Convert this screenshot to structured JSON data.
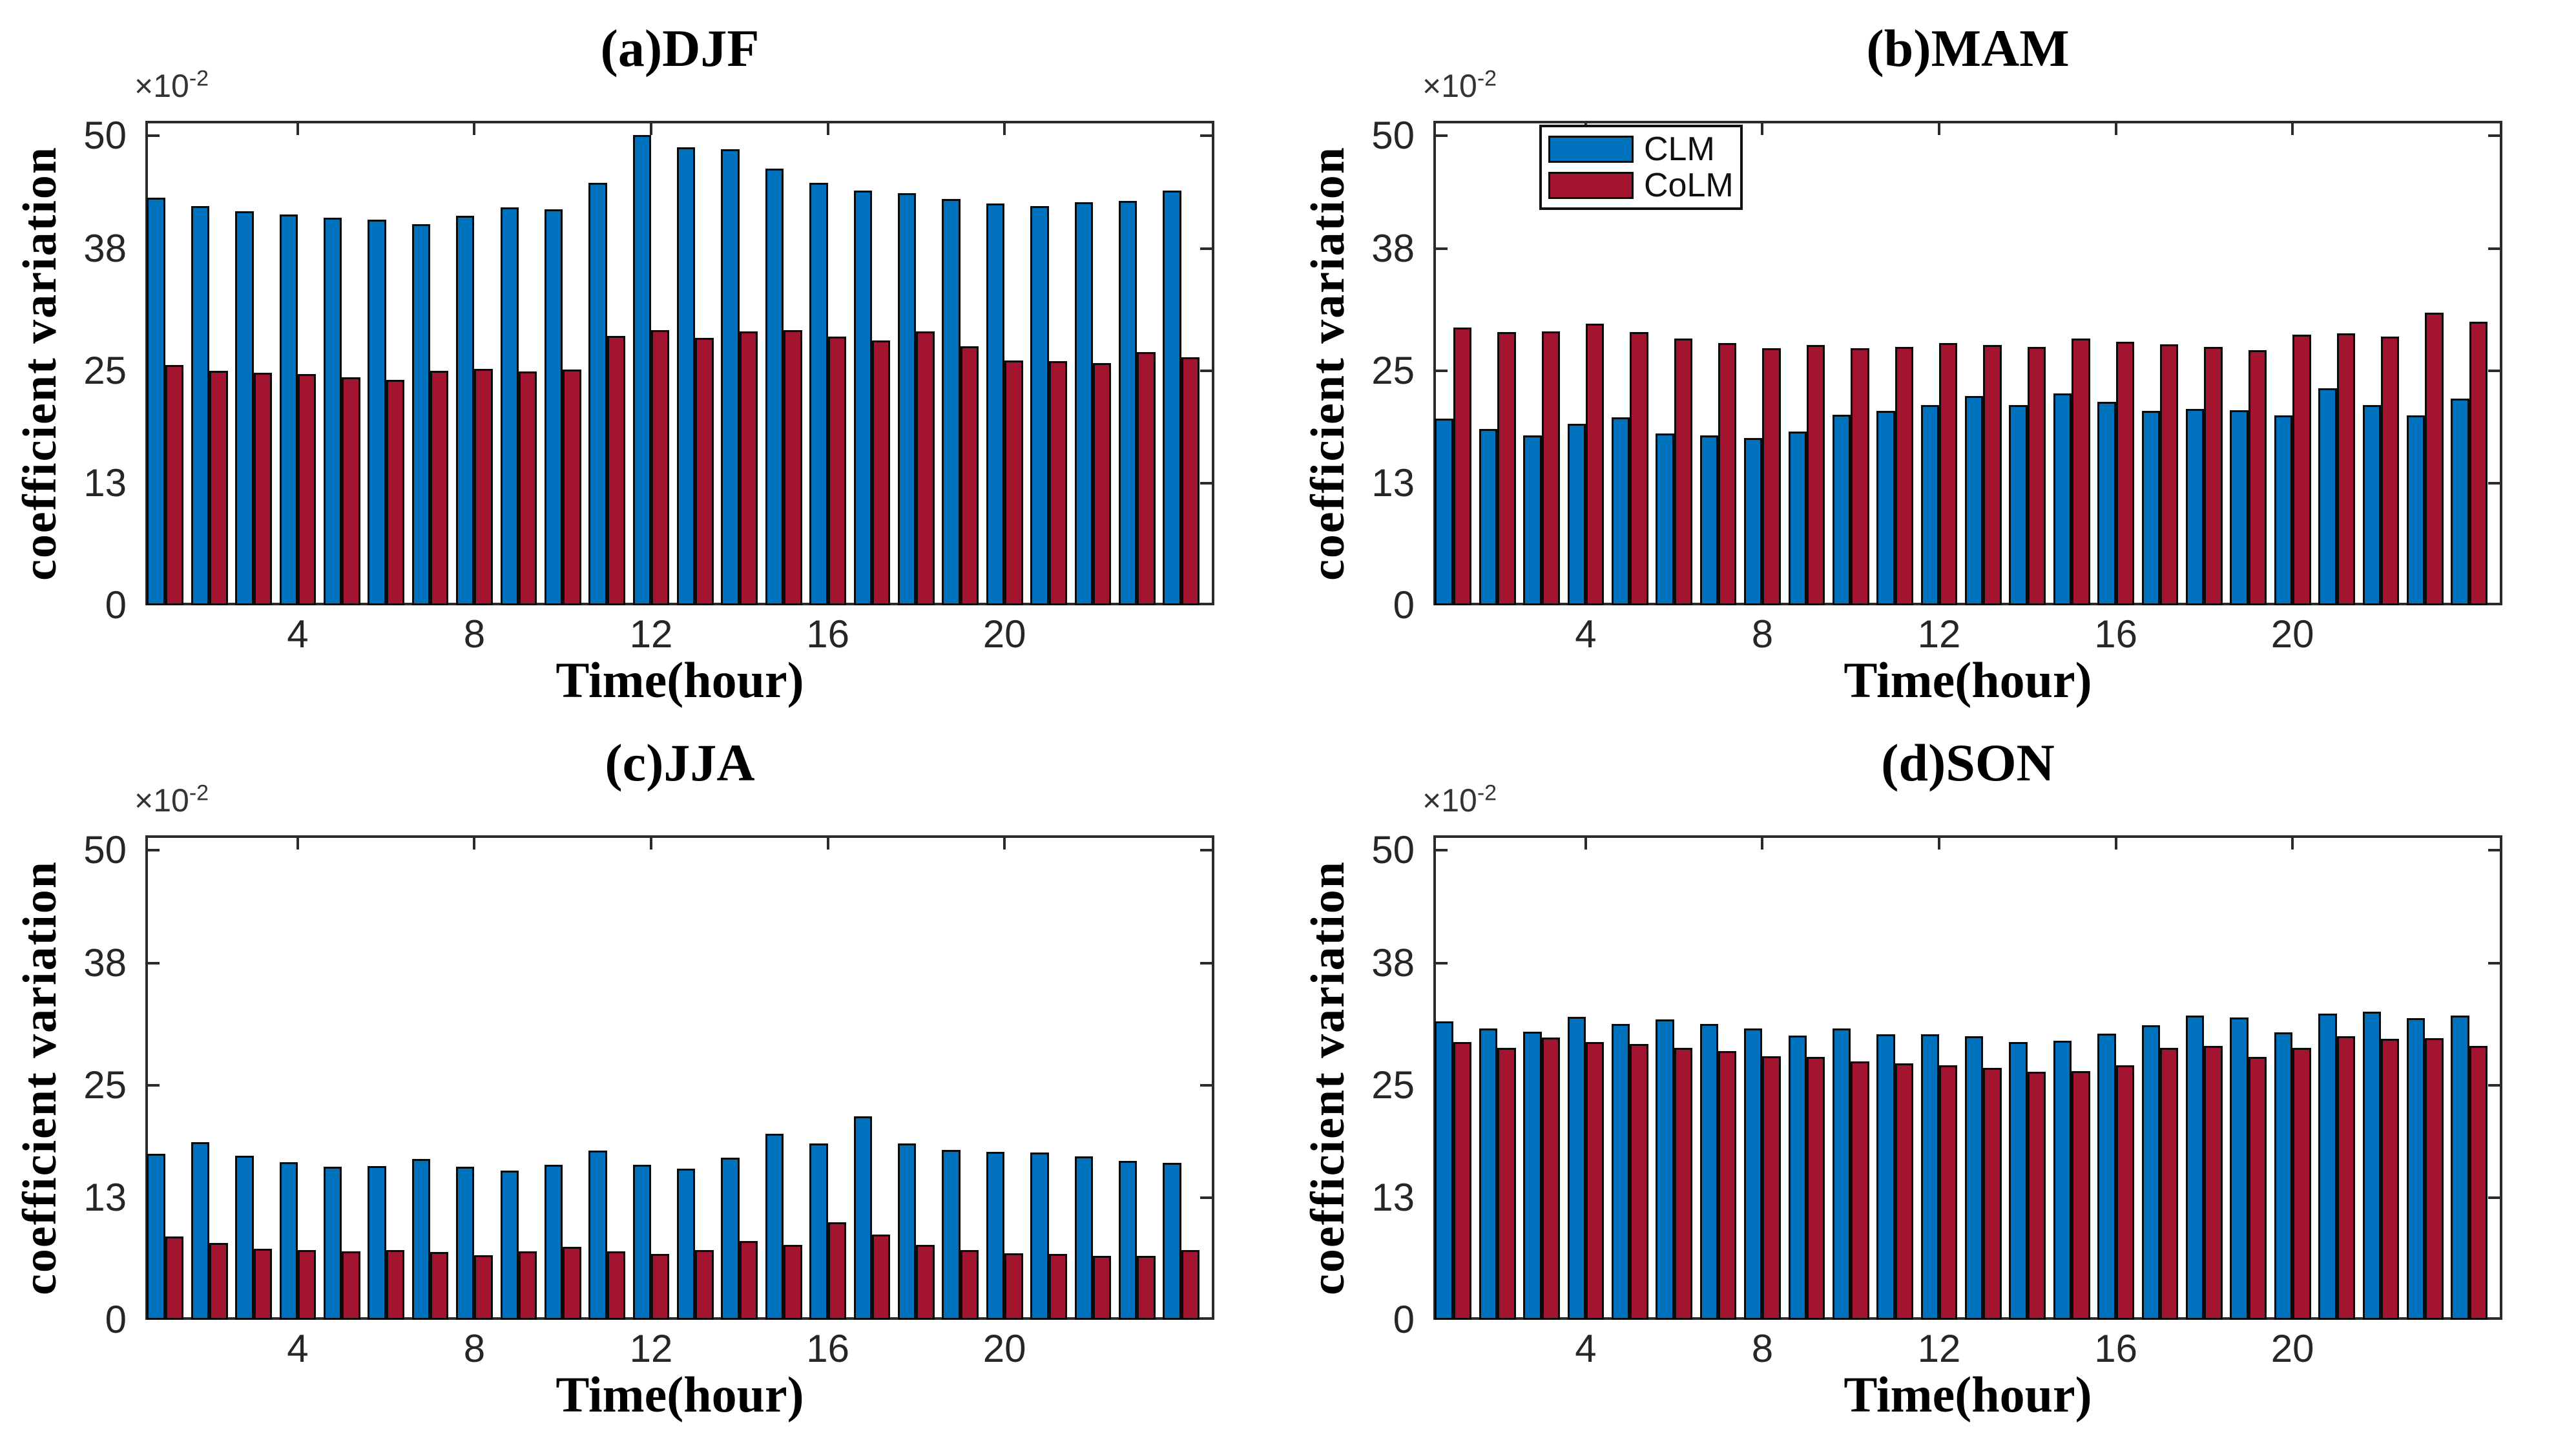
{
  "figure": {
    "background": "#ffffff",
    "axes_color": "#2b2b2b",
    "tick_text_color": "#262626",
    "offset_label": {
      "base": "×10",
      "exp": "-2"
    }
  },
  "legend": {
    "location": "upper-left of panel (b)MAM",
    "entries": [
      {
        "label": "CLM",
        "color": "#0072bd"
      },
      {
        "label": "CoLM",
        "color": "#a2142f"
      }
    ]
  },
  "chart_data": [
    {
      "id": "a",
      "type": "bar",
      "title": "(a)DJF",
      "xlabel": "Time(hour)",
      "ylabel": "coefficient variation",
      "y_scale_note": "×10^-2",
      "categories": [
        1,
        2,
        3,
        4,
        5,
        6,
        7,
        8,
        9,
        10,
        11,
        12,
        13,
        14,
        15,
        16,
        17,
        18,
        19,
        20,
        21,
        22,
        23,
        24
      ],
      "xticks": [
        4,
        8,
        12,
        16,
        20
      ],
      "yticks": [
        0,
        13,
        25,
        38,
        50
      ],
      "xlim": [
        0.55,
        24.75
      ],
      "ylim": [
        0,
        51.6
      ],
      "grid": false,
      "legend": false,
      "series": [
        {
          "name": "CLM",
          "color": "#0072bd",
          "values": [
            43.4,
            42.5,
            42.0,
            41.6,
            41.3,
            41.1,
            40.6,
            41.5,
            42.4,
            42.2,
            45.0,
            50.1,
            48.8,
            48.6,
            46.5,
            45.0,
            44.2,
            43.9,
            43.3,
            42.8,
            42.5,
            42.9,
            43.1,
            44.2
          ]
        },
        {
          "name": "CoLM",
          "color": "#a2142f",
          "values": [
            25.6,
            25.0,
            24.8,
            24.6,
            24.3,
            24.0,
            25.0,
            25.2,
            24.9,
            25.1,
            28.7,
            29.3,
            28.5,
            29.2,
            29.3,
            28.6,
            28.2,
            29.2,
            27.6,
            26.1,
            26.0,
            25.8,
            27.0,
            26.4
          ]
        }
      ]
    },
    {
      "id": "b",
      "type": "bar",
      "title": "(b)MAM",
      "xlabel": "Time(hour)",
      "ylabel": "coefficient variation",
      "y_scale_note": "×10^-2",
      "categories": [
        1,
        2,
        3,
        4,
        5,
        6,
        7,
        8,
        9,
        10,
        11,
        12,
        13,
        14,
        15,
        16,
        17,
        18,
        19,
        20,
        21,
        22,
        23,
        24
      ],
      "xticks": [
        4,
        8,
        12,
        16,
        20
      ],
      "yticks": [
        0,
        13,
        25,
        38,
        50
      ],
      "xlim": [
        0.55,
        24.75
      ],
      "ylim": [
        0,
        51.6
      ],
      "grid": false,
      "legend": true,
      "series": [
        {
          "name": "CLM",
          "color": "#0072bd",
          "values": [
            19.9,
            18.8,
            18.1,
            19.3,
            20.0,
            18.3,
            18.1,
            17.8,
            18.5,
            20.3,
            20.7,
            21.3,
            22.3,
            21.3,
            22.6,
            21.7,
            20.7,
            20.9,
            20.8,
            20.2,
            23.1,
            21.3,
            20.2,
            22.0
          ]
        },
        {
          "name": "CoLM",
          "color": "#a2142f",
          "values": [
            29.6,
            29.1,
            29.2,
            30.0,
            29.1,
            28.4,
            27.9,
            27.4,
            27.7,
            27.4,
            27.5,
            27.9,
            27.7,
            27.5,
            28.4,
            28.1,
            27.8,
            27.5,
            27.2,
            28.8,
            29.0,
            28.6,
            31.2,
            30.2
          ]
        }
      ]
    },
    {
      "id": "c",
      "type": "bar",
      "title": "(c)JJA",
      "xlabel": "Time(hour)",
      "ylabel": "coefficient variation",
      "y_scale_note": "×10^-2",
      "categories": [
        1,
        2,
        3,
        4,
        5,
        6,
        7,
        8,
        9,
        10,
        11,
        12,
        13,
        14,
        15,
        16,
        17,
        18,
        19,
        20,
        21,
        22,
        23,
        24
      ],
      "xticks": [
        4,
        8,
        12,
        16,
        20
      ],
      "yticks": [
        0,
        13,
        25,
        38,
        50
      ],
      "xlim": [
        0.55,
        24.75
      ],
      "ylim": [
        0,
        51.6
      ],
      "grid": false,
      "legend": false,
      "series": [
        {
          "name": "CLM",
          "color": "#0072bd",
          "values": [
            17.7,
            18.9,
            17.5,
            16.8,
            16.3,
            16.4,
            17.1,
            16.3,
            15.9,
            16.5,
            18.0,
            16.5,
            16.1,
            17.3,
            19.8,
            18.8,
            21.7,
            18.8,
            18.1,
            17.9,
            17.8,
            17.4,
            16.9,
            16.7
          ]
        },
        {
          "name": "CoLM",
          "color": "#a2142f",
          "values": [
            8.9,
            8.2,
            7.6,
            7.4,
            7.3,
            7.4,
            7.2,
            6.9,
            7.3,
            7.8,
            7.3,
            7.0,
            7.4,
            8.4,
            8.0,
            10.4,
            9.1,
            8.0,
            7.4,
            7.1,
            7.0,
            6.8,
            6.8,
            7.4
          ]
        }
      ]
    },
    {
      "id": "d",
      "type": "bar",
      "title": "(d)SON",
      "xlabel": "Time(hour)",
      "ylabel": "coefficient variation",
      "y_scale_note": "×10^-2",
      "categories": [
        1,
        2,
        3,
        4,
        5,
        6,
        7,
        8,
        9,
        10,
        11,
        12,
        13,
        14,
        15,
        16,
        17,
        18,
        19,
        20,
        21,
        22,
        23,
        24
      ],
      "xticks": [
        4,
        8,
        12,
        16,
        20
      ],
      "yticks": [
        0,
        13,
        25,
        38,
        50
      ],
      "xlim": [
        0.55,
        24.75
      ],
      "ylim": [
        0,
        51.6
      ],
      "grid": false,
      "legend": false,
      "series": [
        {
          "name": "CLM",
          "color": "#0072bd",
          "values": [
            31.8,
            31.0,
            30.7,
            32.3,
            31.5,
            32.0,
            31.5,
            31.0,
            30.3,
            31.0,
            30.4,
            30.4,
            30.2,
            29.6,
            29.7,
            30.5,
            31.4,
            32.4,
            32.2,
            30.6,
            32.6,
            32.8,
            32.1,
            32.4
          ]
        },
        {
          "name": "CoLM",
          "color": "#a2142f",
          "values": [
            29.6,
            29.0,
            30.1,
            29.6,
            29.4,
            29.0,
            28.6,
            28.1,
            28.0,
            27.5,
            27.3,
            27.1,
            26.8,
            26.4,
            26.5,
            27.1,
            29.0,
            29.2,
            28.0,
            29.0,
            30.2,
            29.9,
            30.0,
            29.2
          ]
        }
      ]
    }
  ]
}
